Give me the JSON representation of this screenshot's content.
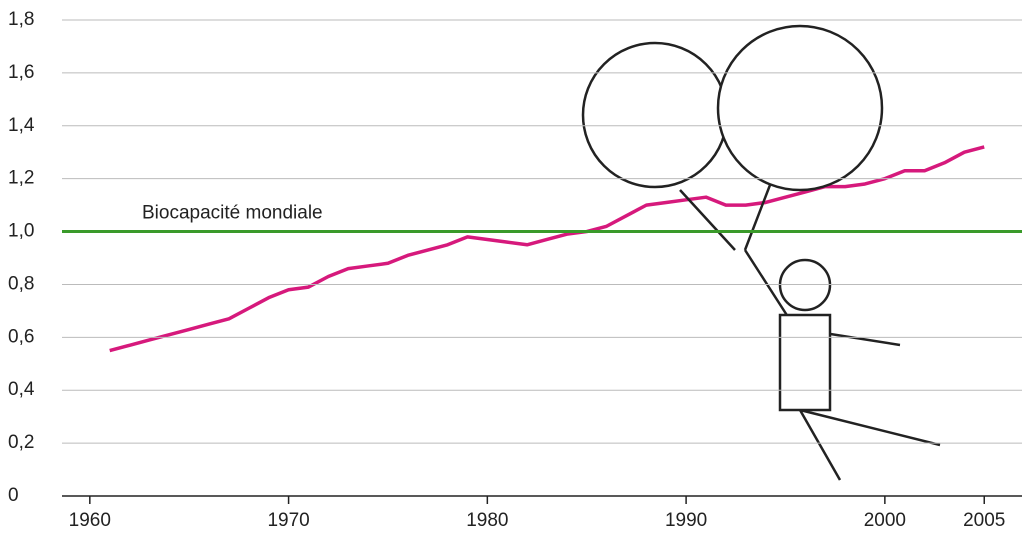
{
  "chart_data": {
    "type": "line",
    "x": [
      1961,
      1962,
      1963,
      1964,
      1965,
      1966,
      1967,
      1968,
      1969,
      1970,
      1971,
      1972,
      1973,
      1974,
      1975,
      1976,
      1977,
      1978,
      1979,
      1980,
      1981,
      1982,
      1983,
      1984,
      1985,
      1986,
      1987,
      1988,
      1989,
      1990,
      1991,
      1992,
      1993,
      1994,
      1995,
      1996,
      1997,
      1998,
      1999,
      2000,
      2001,
      2002,
      2003,
      2004,
      2005
    ],
    "series": [
      {
        "color": "#d6197c",
        "values": [
          0.55,
          0.57,
          0.59,
          0.61,
          0.63,
          0.65,
          0.67,
          0.71,
          0.75,
          0.78,
          0.79,
          0.83,
          0.86,
          0.87,
          0.88,
          0.91,
          0.93,
          0.95,
          0.98,
          0.97,
          0.96,
          0.95,
          0.97,
          0.99,
          1.0,
          1.02,
          1.06,
          1.1,
          1.11,
          1.12,
          1.13,
          1.1,
          1.1,
          1.11,
          1.13,
          1.15,
          1.17,
          1.17,
          1.18,
          1.2,
          1.23,
          1.23,
          1.26,
          1.3,
          1.32
        ]
      }
    ],
    "reference": {
      "value": 1.0,
      "label": "Biocapacité mondiale",
      "color": "#3a9a2a"
    },
    "xlim": [
      1958.6,
      2006.9
    ],
    "xticks": [
      1960,
      1970,
      1980,
      1990,
      2000,
      2005
    ],
    "ylim": [
      0,
      1.8
    ],
    "yticks": [
      0,
      {
        "value": 0.2,
        "label": "0,2"
      },
      {
        "value": 0.4,
        "label": "0,4"
      },
      {
        "value": 0.6,
        "label": "0,6"
      },
      {
        "value": 0.8,
        "label": "0,8"
      },
      {
        "value": 1.0,
        "label": "1,0"
      },
      {
        "value": 1.2,
        "label": "1,2"
      },
      {
        "value": 1.4,
        "label": "1,4"
      },
      {
        "value": 1.6,
        "label": "1,6"
      },
      {
        "value": 1.8,
        "label": "1,8"
      }
    ],
    "grid": true
  }
}
